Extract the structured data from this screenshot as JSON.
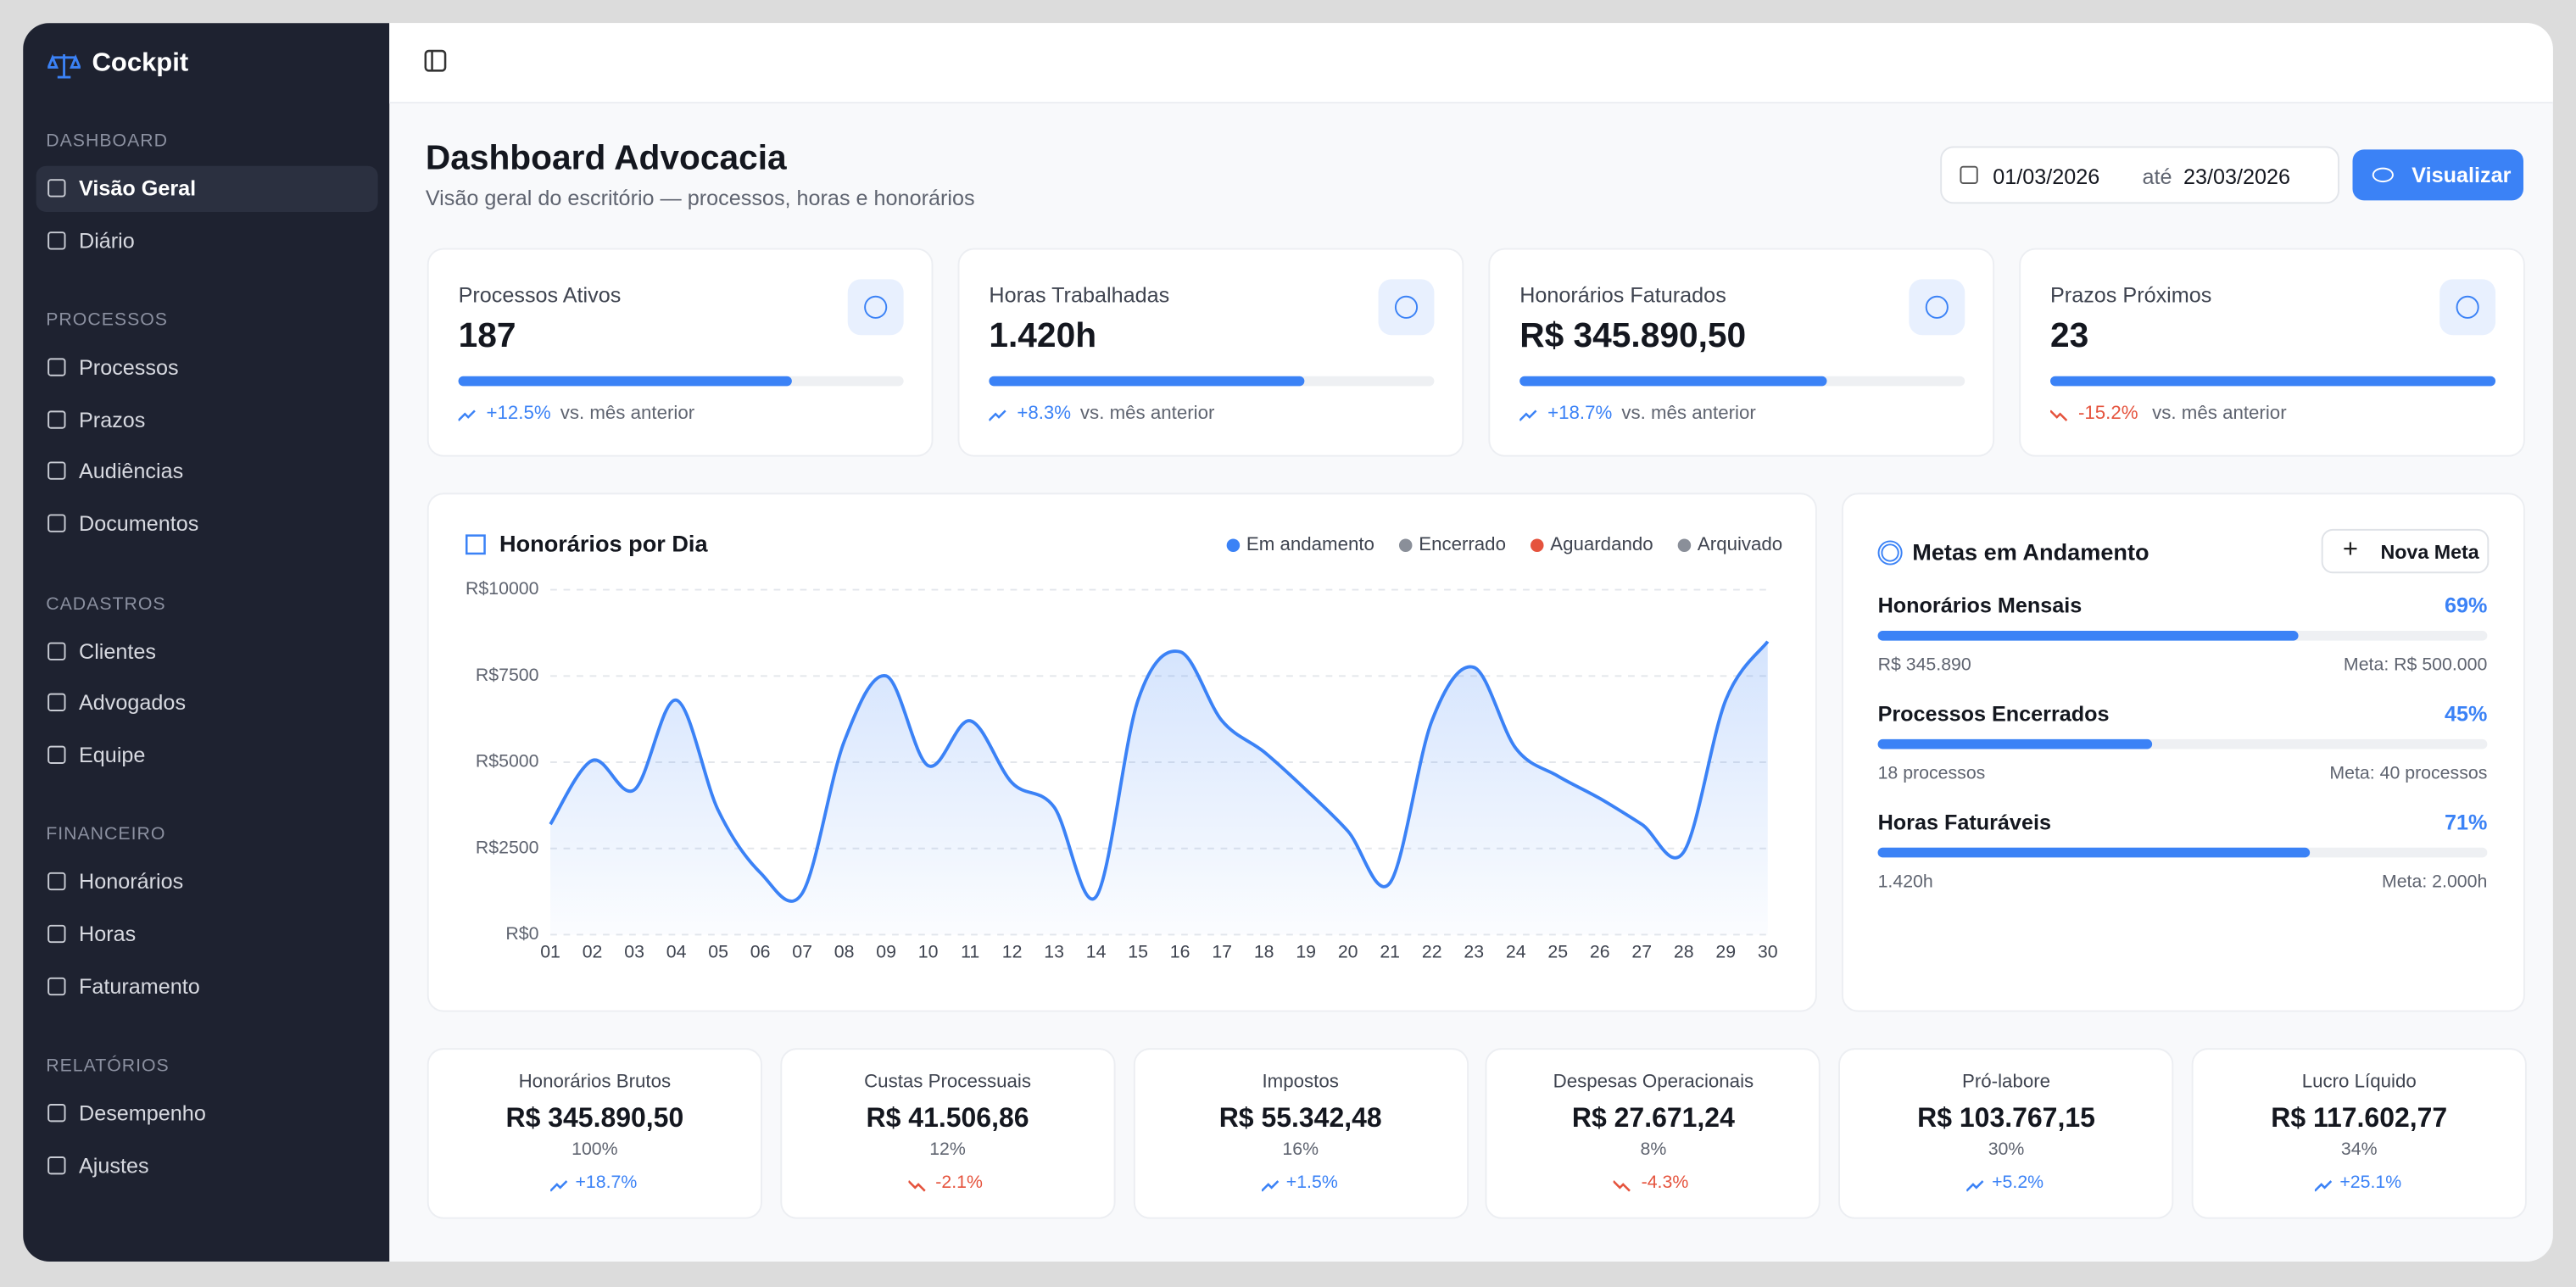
{
  "app": {
    "name": "Cockpit"
  },
  "sidebar": {
    "active": "Visão Geral",
    "sections": [
      {
        "title": "DASHBOARD",
        "items": [
          "Visão Geral",
          "Diário"
        ]
      },
      {
        "title": "PROCESSOS",
        "items": [
          "Processos",
          "Prazos",
          "Audiências",
          "Documentos"
        ]
      },
      {
        "title": "CADASTROS",
        "items": [
          "Clientes",
          "Advogados",
          "Equipe"
        ]
      },
      {
        "title": "FINANCEIRO",
        "items": [
          "Honorários",
          "Horas",
          "Faturamento"
        ]
      },
      {
        "title": "RELATÓRIOS",
        "items": [
          "Desempenho",
          "Ajustes"
        ]
      }
    ]
  },
  "header": {
    "title": "Dashboard Advocacia",
    "subtitle": "Visão geral do escritório — processos, horas e honorários",
    "date_from": "01/03/2026",
    "date_sep": "até",
    "date_to": "23/03/2026",
    "button": "Visualizar"
  },
  "kpis": [
    {
      "label": "Processos Ativos",
      "value": "187",
      "progress": 75,
      "change": "+12.5%",
      "trend": "up",
      "note": "vs. mês anterior"
    },
    {
      "label": "Horas Trabalhadas",
      "value": "1.420h",
      "progress": 71,
      "change": "+8.3%",
      "trend": "up",
      "note": "vs. mês anterior"
    },
    {
      "label": "Honorários Faturados",
      "value": "R$ 345.890,50",
      "progress": 69,
      "change": "+18.7%",
      "trend": "up",
      "note": "vs. mês anterior"
    },
    {
      "label": "Prazos Próximos",
      "value": "23",
      "progress": 100,
      "change": "-15.2%",
      "trend": "down",
      "note": "vs. mês anterior"
    }
  ],
  "chart_data": {
    "type": "area",
    "title": "Honorários por Dia",
    "color": "#3b82f6",
    "grid": true,
    "legend": [
      {
        "name": "Em andamento",
        "color": "#3b82f6"
      },
      {
        "name": "Encerrado",
        "color": "#8a8f99"
      },
      {
        "name": "Aguardando",
        "color": "#e5533d"
      },
      {
        "name": "Arquivado",
        "color": "#8a8f99"
      }
    ],
    "categories": [
      "01",
      "02",
      "03",
      "04",
      "05",
      "06",
      "07",
      "08",
      "09",
      "10",
      "11",
      "12",
      "13",
      "14",
      "15",
      "16",
      "17",
      "18",
      "19",
      "20",
      "21",
      "22",
      "23",
      "24",
      "25",
      "26",
      "27",
      "28",
      "29",
      "30"
    ],
    "values": [
      3200,
      5050,
      4200,
      6800,
      3600,
      1800,
      1200,
      5600,
      7500,
      4900,
      6200,
      4400,
      3700,
      1100,
      6800,
      8200,
      6200,
      5300,
      4200,
      3000,
      1500,
      6200,
      7750,
      5400,
      4600,
      3950,
      3200,
      2400,
      6800,
      8500
    ],
    "ylim": [
      0,
      10000
    ],
    "yticks": [
      {
        "value": 0,
        "label": "R$0"
      },
      {
        "value": 2500,
        "label": "R$2500"
      },
      {
        "value": 5000,
        "label": "R$5000"
      },
      {
        "value": 7500,
        "label": "R$7500"
      },
      {
        "value": 10000,
        "label": "R$10000"
      }
    ]
  },
  "goals": {
    "title": "Metas em Andamento",
    "button": "Nova Meta",
    "items": [
      {
        "name": "Honorários Mensais",
        "percent": {
          "value": 69,
          "label": "69%"
        },
        "current": "R$ 345.890",
        "target": "Meta: R$ 500.000"
      },
      {
        "name": "Processos Encerrados",
        "percent": {
          "value": 45,
          "label": "45%"
        },
        "current": "18 processos",
        "target": "Meta: 40 processos"
      },
      {
        "name": "Horas Faturáveis",
        "percent": {
          "value": 71,
          "label": "71%"
        },
        "current": "1.420h",
        "target": "Meta: 2.000h"
      }
    ]
  },
  "summary": [
    {
      "label": "Honorários Brutos",
      "value": "R$ 345.890,50",
      "share": "100%",
      "change": "+18.7%",
      "trend": "up"
    },
    {
      "label": "Custas Processuais",
      "value": "R$ 41.506,86",
      "share": "12%",
      "change": "-2.1%",
      "trend": "down"
    },
    {
      "label": "Impostos",
      "value": "R$ 55.342,48",
      "share": "16%",
      "change": "+1.5%",
      "trend": "up"
    },
    {
      "label": "Despesas Operacionais",
      "value": "R$ 27.671,24",
      "share": "8%",
      "change": "-4.3%",
      "trend": "down"
    },
    {
      "label": "Pró-labore",
      "value": "R$ 103.767,15",
      "share": "30%",
      "change": "+5.2%",
      "trend": "up"
    },
    {
      "label": "Lucro Líquido",
      "value": "R$ 117.602,77",
      "share": "34%",
      "change": "+25.1%",
      "trend": "up"
    }
  ]
}
